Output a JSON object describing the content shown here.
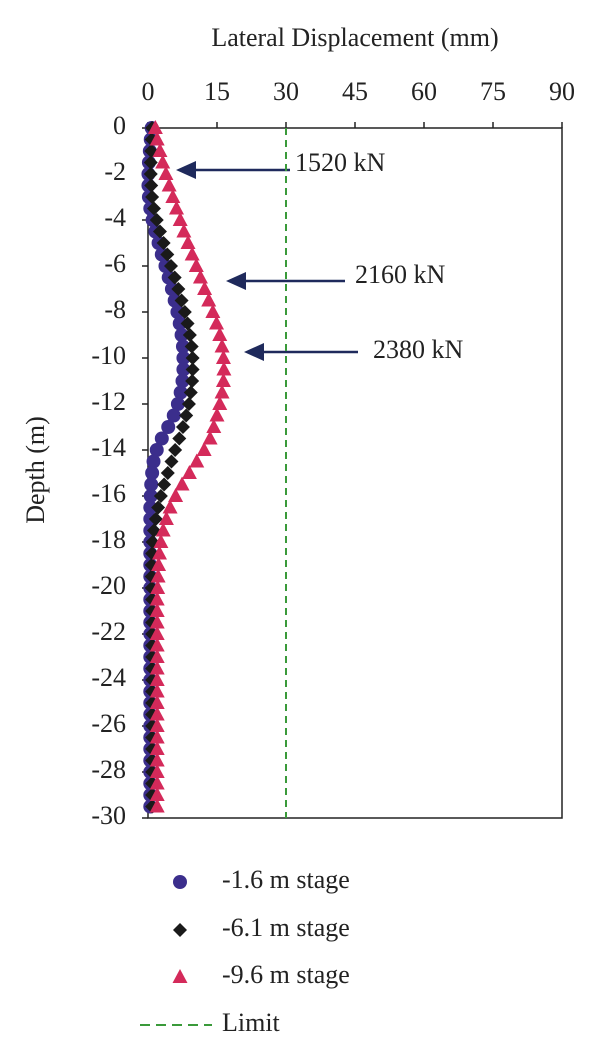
{
  "chart_data": {
    "type": "scatter",
    "xlabel": "Lateral Displacement (mm)",
    "ylabel": "Depth (m)",
    "xlim": [
      0,
      90
    ],
    "xticks": [
      0,
      15,
      30,
      45,
      60,
      75,
      90
    ],
    "ylim": [
      -30,
      0
    ],
    "yticks": [
      0,
      -2,
      -4,
      -6,
      -8,
      -10,
      -12,
      -14,
      -16,
      -18,
      -20,
      -22,
      -24,
      -26,
      -28,
      -30
    ],
    "y": [
      0,
      -0.5,
      -1,
      -1.5,
      -2,
      -2.5,
      -3,
      -3.5,
      -4,
      -4.5,
      -5,
      -5.5,
      -6,
      -6.5,
      -7,
      -7.5,
      -8,
      -8.5,
      -9,
      -9.5,
      -10,
      -10.5,
      -11,
      -11.5,
      -12,
      -12.5,
      -13,
      -13.5,
      -14,
      -14.5,
      -15,
      -15.5,
      -16,
      -16.5,
      -17,
      -17.5,
      -18,
      -18.5,
      -19,
      -19.5,
      -20,
      -20.5,
      -21,
      -21.5,
      -22,
      -22.5,
      -23,
      -23.5,
      -24,
      -24.5,
      -25,
      -25.5,
      -26,
      -26.5,
      -27,
      -27.5,
      -28,
      -28.5,
      -29,
      -29.5
    ],
    "series": [
      {
        "name": "-1.6 m stage",
        "color": "#3b2e8c",
        "marker": "circle",
        "x": [
          0.8,
          0.6,
          0.4,
          0.2,
          0.1,
          0.1,
          0.2,
          0.5,
          1.0,
          1.6,
          2.3,
          3.0,
          3.8,
          4.5,
          5.2,
          5.8,
          6.4,
          6.9,
          7.3,
          7.6,
          7.7,
          7.7,
          7.5,
          7.1,
          6.5,
          5.6,
          4.4,
          3.0,
          1.9,
          1.2,
          0.9,
          0.7,
          0.6,
          0.5,
          0.5,
          0.5,
          0.5,
          0.5,
          0.5,
          0.5,
          0.5,
          0.5,
          0.5,
          0.5,
          0.5,
          0.5,
          0.5,
          0.5,
          0.5,
          0.5,
          0.5,
          0.5,
          0.5,
          0.5,
          0.5,
          0.5,
          0.5,
          0.5,
          0.5,
          0.5
        ]
      },
      {
        "name": "-6.1 m stage",
        "color": "#1a1a1a",
        "marker": "diamond",
        "x": [
          0.9,
          0.8,
          0.7,
          0.6,
          0.6,
          0.7,
          0.9,
          1.3,
          1.9,
          2.6,
          3.4,
          4.2,
          5.0,
          5.8,
          6.6,
          7.3,
          8.0,
          8.6,
          9.1,
          9.5,
          9.7,
          9.7,
          9.6,
          9.3,
          8.9,
          8.3,
          7.6,
          6.8,
          5.9,
          5.1,
          4.3,
          3.5,
          2.8,
          2.2,
          1.7,
          1.3,
          1.0,
          0.9,
          0.8,
          0.8,
          0.8,
          0.9,
          0.9,
          0.9,
          0.9,
          0.9,
          0.9,
          0.9,
          0.9,
          0.9,
          0.9,
          0.9,
          0.9,
          0.9,
          0.9,
          0.9,
          0.9,
          0.9,
          0.9,
          0.9
        ]
      },
      {
        "name": "-9.6 m stage",
        "color": "#d42a5a",
        "marker": "triangle",
        "x": [
          1.6,
          2.0,
          2.6,
          3.2,
          3.9,
          4.6,
          5.4,
          6.2,
          7.0,
          7.8,
          8.7,
          9.6,
          10.5,
          11.4,
          12.3,
          13.2,
          14.1,
          14.9,
          15.6,
          16.1,
          16.4,
          16.5,
          16.4,
          16.1,
          15.6,
          15.0,
          14.3,
          13.5,
          12.2,
          10.6,
          9.0,
          7.4,
          6.0,
          4.8,
          4.0,
          3.3,
          2.8,
          2.5,
          2.3,
          2.2,
          2.1,
          2.0,
          2.0,
          2.0,
          2.0,
          2.0,
          2.0,
          2.0,
          2.0,
          2.0,
          2.0,
          2.0,
          2.0,
          2.0,
          2.0,
          2.0,
          2.0,
          2.0,
          2.0,
          2.0
        ]
      }
    ],
    "limit": {
      "name": "Limit",
      "value": 30,
      "color": "#3a9a3a"
    },
    "annotations": [
      "1520 kN",
      "2160 kN",
      "2380 kN"
    ]
  }
}
